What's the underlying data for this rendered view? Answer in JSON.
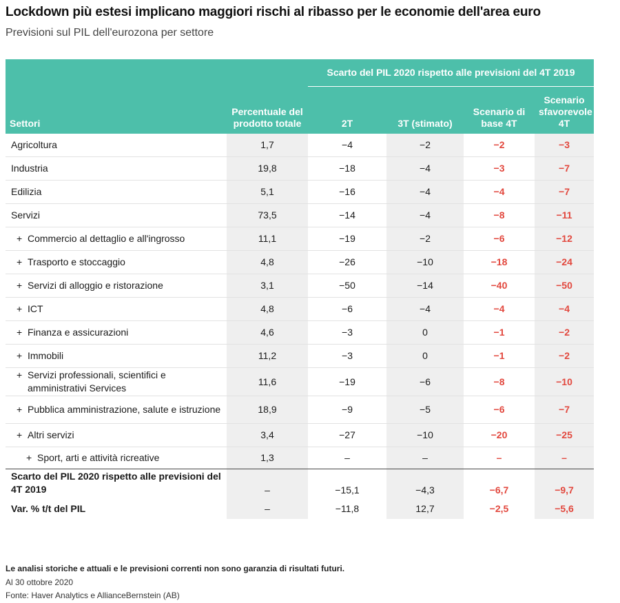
{
  "title": "Lockdown più estesi implicano maggiori rischi al ribasso per le economie dell'area euro",
  "subtitle": "Previsioni sul PIL dell'eurozona per settore",
  "header": {
    "sectors": "Settori",
    "pct": "Percentuale del prodotto totale",
    "group": "Scarto del PIL 2020 rispetto alle previsioni del 4T 2019",
    "q2": "2T",
    "q3": "3T (stimato)",
    "base": "Scenario di base 4T",
    "adverse": "Scenario sfavorevole 4T"
  },
  "accent_color": "#4dbfaa",
  "negative_color": "#e2473d",
  "rows": [
    {
      "sector": "Agricoltura",
      "pct": "1,7",
      "q2": "−4",
      "q3": "−2",
      "base": "−2",
      "adverse": "−3"
    },
    {
      "sector": "Industria",
      "pct": "19,8",
      "q2": "−18",
      "q3": "−4",
      "base": "−3",
      "adverse": "−7"
    },
    {
      "sector": "Edilizia",
      "pct": "5,1",
      "q2": "−16",
      "q3": "−4",
      "base": "−4",
      "adverse": "−7"
    },
    {
      "sector": "Servizi",
      "pct": "73,5",
      "q2": "−14",
      "q3": "−4",
      "base": "−8",
      "adverse": "−11"
    },
    {
      "sector": "Commercio al dettaglio e all'ingrosso",
      "pct": "11,1",
      "q2": "−19",
      "q3": "−2",
      "base": "−6",
      "adverse": "−12"
    },
    {
      "sector": "Trasporto e stoccaggio",
      "pct": "4,8",
      "q2": "−26",
      "q3": "−10",
      "base": "−18",
      "adverse": "−24"
    },
    {
      "sector": "Servizi di alloggio e ristorazione",
      "pct": "3,1",
      "q2": "−50",
      "q3": "−14",
      "base": "−40",
      "adverse": "−50"
    },
    {
      "sector": "ICT",
      "pct": "4,8",
      "q2": "−6",
      "q3": "−4",
      "base": "−4",
      "adverse": "−4"
    },
    {
      "sector": "Finanza e assicurazioni",
      "pct": "4,6",
      "q2": "−3",
      "q3": "0",
      "base": "−1",
      "adverse": "−2"
    },
    {
      "sector": "Immobili",
      "pct": "11,2",
      "q2": "−3",
      "q3": "0",
      "base": "−1",
      "adverse": "−2"
    },
    {
      "sector": "Servizi professionali, scientifici e amministrativi Services",
      "pct": "11,6",
      "q2": "−19",
      "q3": "−6",
      "base": "−8",
      "adverse": "−10"
    },
    {
      "sector": "Pubblica amministrazione, salute e istruzione",
      "pct": "18,9",
      "q2": "−9",
      "q3": "−5",
      "base": "−6",
      "adverse": "−7"
    },
    {
      "sector": "Altri servizi",
      "pct": "3,4",
      "q2": "−27",
      "q3": "−10",
      "base": "−20",
      "adverse": "−25"
    },
    {
      "sector": "Sport, arti e attività ricreative",
      "pct": "1,3",
      "q2": "–",
      "q3": "–",
      "base": "–",
      "adverse": "–"
    }
  ],
  "plus_sign": "+",
  "totals": [
    {
      "label": "Scarto del PIL 2020 rispetto alle previsioni del 4T 2019",
      "pct": "–",
      "q2": "−15,1",
      "q3": "−4,3",
      "base": "−6,7",
      "adverse": "−9,7"
    },
    {
      "label": "Var. % t/t del PIL",
      "pct": "–",
      "q2": "−11,8",
      "q3": "12,7",
      "base": "−2,5",
      "adverse": "−5,6"
    }
  ],
  "footer": {
    "disclaimer": "Le analisi storiche e attuali e le previsioni correnti non sono garanzia di risultati futuri.",
    "date": "Al 30 ottobre 2020",
    "source": "Fonte: Haver Analytics e AllianceBernstein (AB)"
  }
}
